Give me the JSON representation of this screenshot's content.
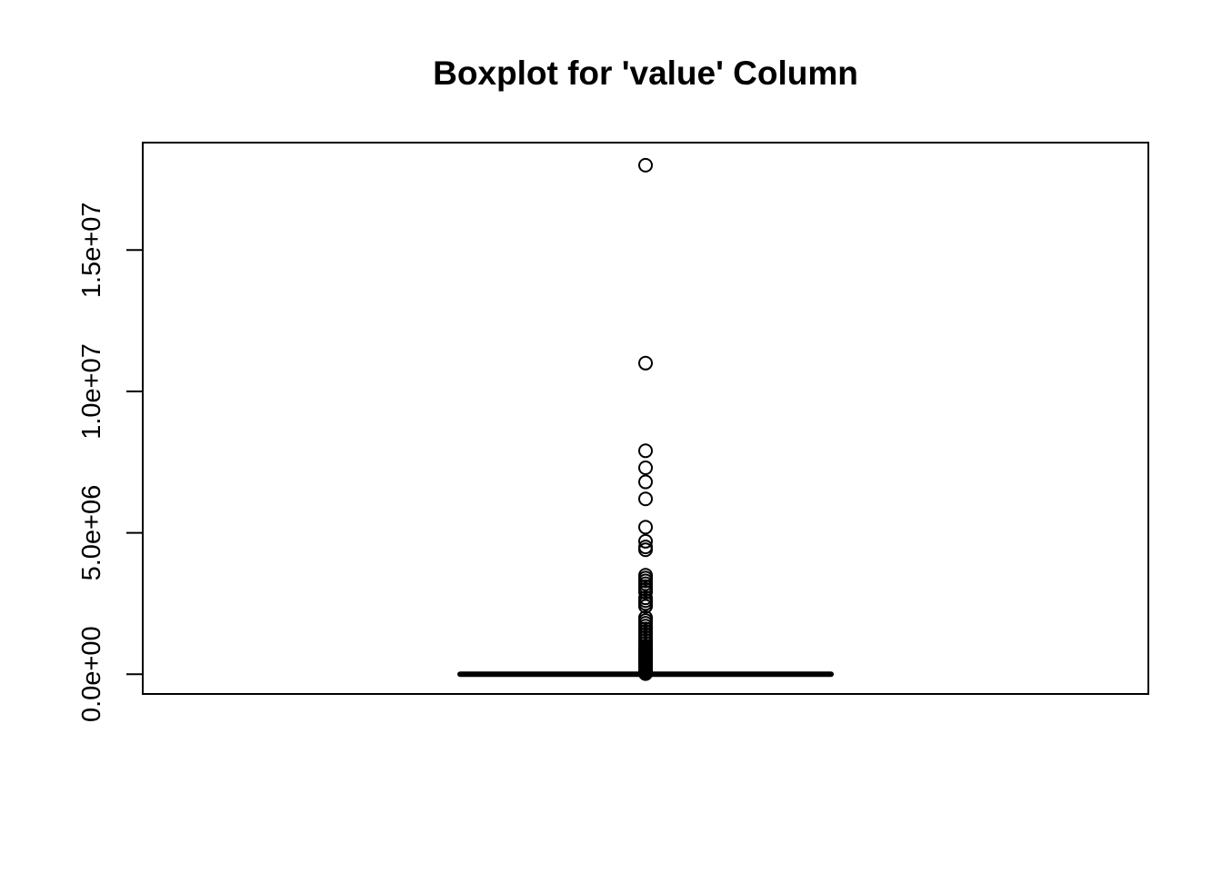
{
  "chart_data": {
    "type": "boxplot",
    "title": "Boxplot for 'value' Column",
    "xlabel": "",
    "ylabel": "",
    "ylim": [
      -700000,
      18800000
    ],
    "y_ticks": [
      {
        "value": 0,
        "label": "0.0e+00"
      },
      {
        "value": 5000000,
        "label": "5.0e+06"
      },
      {
        "value": 10000000,
        "label": "1.0e+07"
      },
      {
        "value": 15000000,
        "label": "1.5e+07"
      }
    ],
    "box": {
      "min": 0,
      "q1": 0,
      "median": 0,
      "q3": 0,
      "max": 0
    },
    "outliers": [
      18000000,
      11000000,
      7900000,
      7300000,
      6800000,
      6200000,
      5200000,
      4700000,
      4500000,
      4400000,
      3500000,
      3400000,
      3300000,
      3200000,
      3100000,
      3000000,
      2900000,
      2700000,
      2600000,
      2500000,
      2400000,
      2000000,
      1900000,
      1800000,
      1700000,
      1600000,
      1500000,
      1400000,
      1300000,
      1200000,
      1100000,
      1000000,
      950000,
      900000,
      850000,
      800000,
      750000,
      700000,
      650000,
      600000,
      550000,
      500000,
      450000,
      400000,
      350000,
      300000,
      250000,
      200000,
      150000,
      120000,
      100000,
      80000,
      60000,
      40000,
      20000
    ],
    "grid": false,
    "legend": "none"
  }
}
